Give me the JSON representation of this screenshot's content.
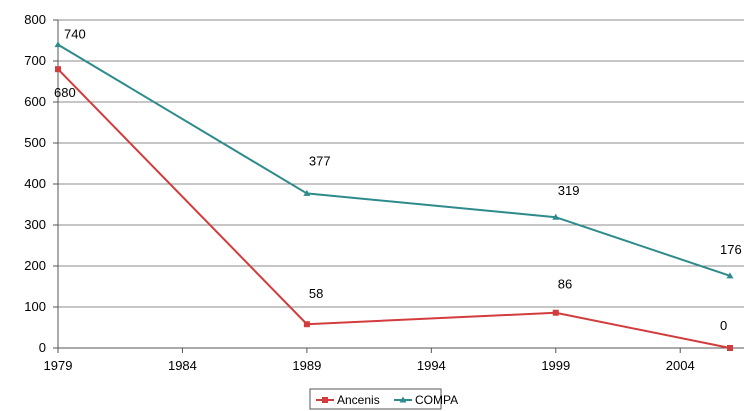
{
  "chart_data": {
    "type": "line",
    "x": [
      1979,
      1989,
      1999,
      2006
    ],
    "series": [
      {
        "name": "Ancenis",
        "values": [
          680,
          58,
          86,
          0
        ],
        "color": "#d23c3c",
        "marker": "square"
      },
      {
        "name": "COMPA",
        "values": [
          740,
          377,
          319,
          176
        ],
        "color": "#2e8b8b",
        "marker": "triangle"
      }
    ],
    "x_ticks": [
      1979,
      1984,
      1989,
      1994,
      1999,
      2004
    ],
    "y_ticks": [
      0,
      100,
      200,
      300,
      400,
      500,
      600,
      700,
      800
    ],
    "xlim": [
      1979,
      2006
    ],
    "ylim": [
      0,
      800
    ],
    "grid": "horizontal",
    "legend_position": "bottom",
    "title": "",
    "xlabel": "",
    "ylabel": ""
  }
}
